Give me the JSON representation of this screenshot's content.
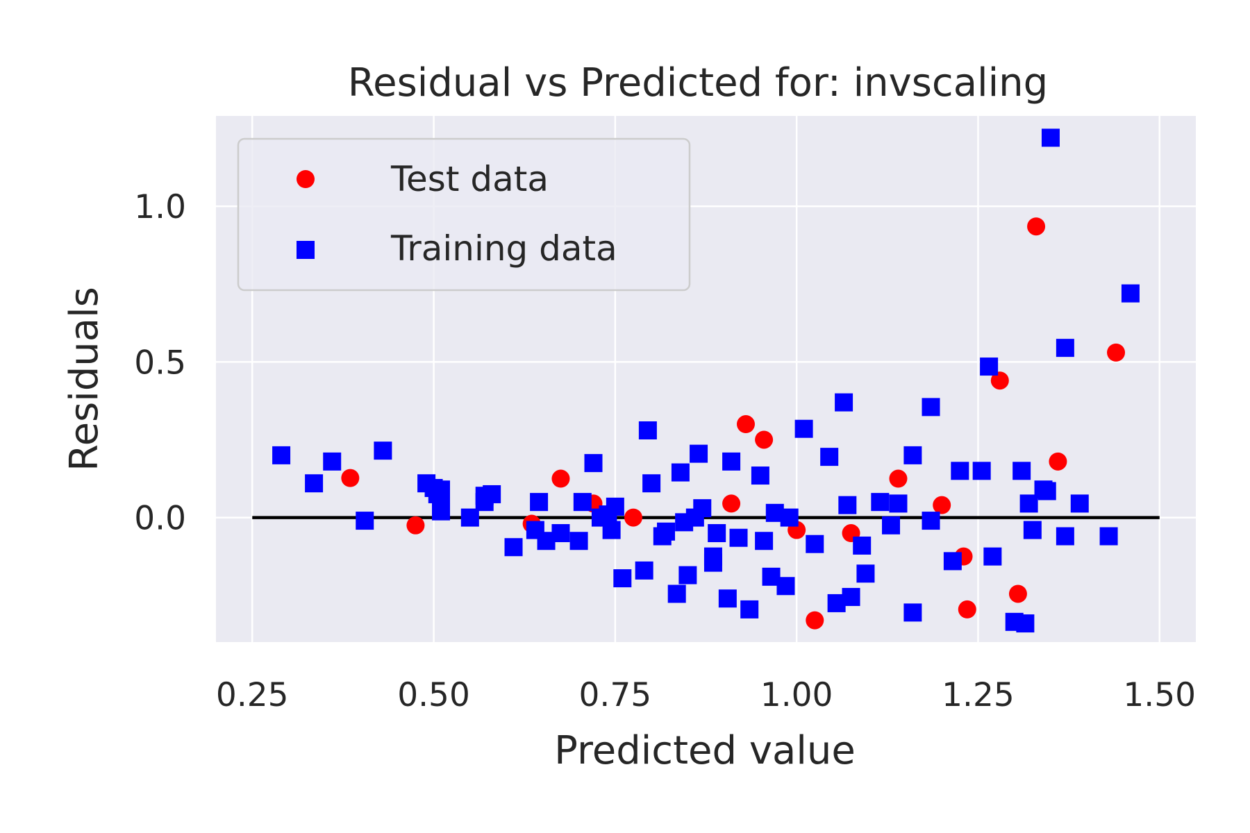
{
  "chart_data": {
    "type": "scatter",
    "title": "Residual vs Predicted for: invscaling",
    "xlabel": "Predicted value",
    "ylabel": "Residuals",
    "xlim": [
      0.2,
      1.55
    ],
    "ylim": [
      -0.4,
      1.29
    ],
    "xticks": [
      "0.25",
      "0.50",
      "0.75",
      "1.00",
      "1.25",
      "1.50"
    ],
    "xtick_values": [
      0.25,
      0.5,
      0.75,
      1.0,
      1.25,
      1.5
    ],
    "yticks": [
      "0.0",
      "0.5",
      "1.0"
    ],
    "ytick_values": [
      0.0,
      0.5,
      1.0
    ],
    "grid": true,
    "legend_position": "upper-left",
    "background": "#eaeaf2",
    "hline": {
      "y": 0.0,
      "xmin": 0.25,
      "xmax": 1.5,
      "color": "#000000"
    },
    "series": [
      {
        "name": "Test data",
        "marker": "circle",
        "color": "#ff0000",
        "points": [
          [
            0.385,
            0.127
          ],
          [
            0.475,
            -0.025
          ],
          [
            0.635,
            -0.02
          ],
          [
            0.675,
            0.125
          ],
          [
            0.72,
            0.045
          ],
          [
            0.73,
            0.0
          ],
          [
            0.775,
            0.0
          ],
          [
            0.91,
            0.045
          ],
          [
            0.93,
            0.3
          ],
          [
            0.955,
            0.25
          ],
          [
            1.0,
            -0.04
          ],
          [
            1.025,
            -0.33
          ],
          [
            1.075,
            -0.05
          ],
          [
            1.14,
            0.125
          ],
          [
            1.2,
            0.04
          ],
          [
            1.23,
            -0.125
          ],
          [
            1.235,
            -0.295
          ],
          [
            1.28,
            0.44
          ],
          [
            1.305,
            -0.245
          ],
          [
            1.33,
            0.935
          ],
          [
            1.36,
            0.18
          ],
          [
            1.44,
            0.53
          ]
        ]
      },
      {
        "name": "Training data",
        "marker": "square",
        "color": "#0000ff",
        "points": [
          [
            0.29,
            0.2
          ],
          [
            0.335,
            0.11
          ],
          [
            0.36,
            0.18
          ],
          [
            0.405,
            -0.01
          ],
          [
            0.43,
            0.215
          ],
          [
            0.49,
            0.11
          ],
          [
            0.5,
            0.095
          ],
          [
            0.505,
            0.075
          ],
          [
            0.51,
            0.09
          ],
          [
            0.51,
            0.04
          ],
          [
            0.51,
            0.02
          ],
          [
            0.55,
            0.0
          ],
          [
            0.57,
            0.05
          ],
          [
            0.57,
            0.07
          ],
          [
            0.58,
            0.075
          ],
          [
            0.61,
            -0.095
          ],
          [
            0.64,
            -0.04
          ],
          [
            0.645,
            0.05
          ],
          [
            0.655,
            -0.075
          ],
          [
            0.675,
            -0.05
          ],
          [
            0.7,
            -0.075
          ],
          [
            0.705,
            0.05
          ],
          [
            0.72,
            0.175
          ],
          [
            0.73,
            0.0
          ],
          [
            0.74,
            0.01
          ],
          [
            0.745,
            -0.04
          ],
          [
            0.75,
            0.035
          ],
          [
            0.76,
            -0.195
          ],
          [
            0.79,
            -0.17
          ],
          [
            0.795,
            0.28
          ],
          [
            0.8,
            0.11
          ],
          [
            0.815,
            -0.06
          ],
          [
            0.82,
            -0.045
          ],
          [
            0.835,
            -0.245
          ],
          [
            0.84,
            0.145
          ],
          [
            0.845,
            -0.015
          ],
          [
            0.85,
            -0.185
          ],
          [
            0.86,
            0.0
          ],
          [
            0.865,
            0.205
          ],
          [
            0.87,
            0.03
          ],
          [
            0.885,
            -0.145
          ],
          [
            0.885,
            -0.125
          ],
          [
            0.89,
            -0.05
          ],
          [
            0.905,
            -0.26
          ],
          [
            0.91,
            0.18
          ],
          [
            0.92,
            -0.065
          ],
          [
            0.935,
            -0.295
          ],
          [
            0.95,
            0.135
          ],
          [
            0.955,
            -0.075
          ],
          [
            0.965,
            -0.19
          ],
          [
            0.97,
            0.015
          ],
          [
            0.985,
            -0.22
          ],
          [
            0.99,
            0.0
          ],
          [
            1.01,
            0.285
          ],
          [
            1.025,
            -0.085
          ],
          [
            1.045,
            0.195
          ],
          [
            1.055,
            -0.275
          ],
          [
            1.065,
            0.37
          ],
          [
            1.07,
            0.04
          ],
          [
            1.075,
            -0.255
          ],
          [
            1.09,
            -0.09
          ],
          [
            1.095,
            -0.18
          ],
          [
            1.115,
            0.05
          ],
          [
            1.13,
            -0.025
          ],
          [
            1.14,
            0.045
          ],
          [
            1.16,
            -0.305
          ],
          [
            1.16,
            0.2
          ],
          [
            1.185,
            0.355
          ],
          [
            1.185,
            -0.01
          ],
          [
            1.215,
            -0.14
          ],
          [
            1.225,
            0.15
          ],
          [
            1.255,
            0.15
          ],
          [
            1.265,
            0.485
          ],
          [
            1.27,
            -0.125
          ],
          [
            1.3,
            -0.335
          ],
          [
            1.31,
            0.15
          ],
          [
            1.315,
            -0.34
          ],
          [
            1.32,
            0.045
          ],
          [
            1.325,
            -0.04
          ],
          [
            1.34,
            0.09
          ],
          [
            1.345,
            0.085
          ],
          [
            1.35,
            1.22
          ],
          [
            1.37,
            -0.06
          ],
          [
            1.37,
            0.545
          ],
          [
            1.39,
            0.045
          ],
          [
            1.43,
            -0.06
          ],
          [
            1.46,
            0.72
          ]
        ]
      }
    ]
  }
}
